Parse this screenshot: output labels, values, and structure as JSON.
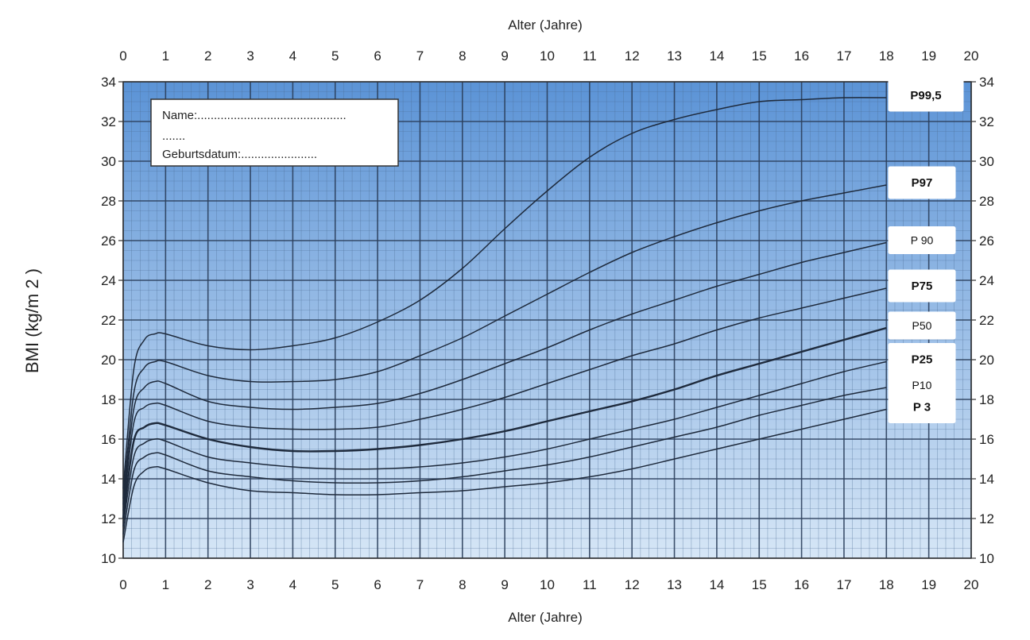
{
  "chart_data": {
    "type": "line",
    "xlabel": "Alter (Jahre)",
    "ylabel": "BMI (kg/m 2 )",
    "xlim": [
      0,
      20
    ],
    "ylim": [
      10,
      34
    ],
    "x_ticks": [
      0,
      1,
      2,
      3,
      4,
      5,
      6,
      7,
      8,
      9,
      10,
      11,
      12,
      13,
      14,
      15,
      16,
      17,
      18,
      19,
      20
    ],
    "y_ticks": [
      10,
      12,
      14,
      16,
      18,
      20,
      22,
      24,
      26,
      28,
      30,
      32,
      34
    ],
    "grid": true,
    "background": {
      "top": "#5b93d6",
      "bottom": "#d6e6f6"
    },
    "x": [
      0,
      0.25,
      0.5,
      0.75,
      1,
      2,
      3,
      4,
      5,
      6,
      7,
      8,
      9,
      10,
      11,
      12,
      13,
      14,
      15,
      16,
      17,
      18
    ],
    "series": [
      {
        "name": "P99,5",
        "bold": true,
        "values": [
          13.5,
          19.5,
          21.0,
          21.3,
          21.3,
          20.7,
          20.5,
          20.7,
          21.1,
          21.9,
          23.0,
          24.6,
          26.6,
          28.5,
          30.2,
          31.4,
          32.1,
          32.6,
          33.0,
          33.1,
          33.2,
          33.2
        ]
      },
      {
        "name": "P97",
        "bold": true,
        "values": [
          13.0,
          18.3,
          19.6,
          19.9,
          19.9,
          19.2,
          18.9,
          18.9,
          19.0,
          19.4,
          20.2,
          21.1,
          22.2,
          23.3,
          24.4,
          25.4,
          26.2,
          26.9,
          27.5,
          28.0,
          28.4,
          28.8
        ]
      },
      {
        "name": "P 90",
        "bold": false,
        "values": [
          12.7,
          17.5,
          18.6,
          18.9,
          18.8,
          17.9,
          17.6,
          17.5,
          17.6,
          17.8,
          18.3,
          19.0,
          19.8,
          20.6,
          21.5,
          22.3,
          23.0,
          23.7,
          24.3,
          24.9,
          25.4,
          25.9
        ]
      },
      {
        "name": "P75",
        "bold": true,
        "values": [
          12.4,
          16.8,
          17.6,
          17.8,
          17.7,
          16.9,
          16.6,
          16.5,
          16.5,
          16.6,
          17.0,
          17.5,
          18.1,
          18.8,
          19.5,
          20.2,
          20.8,
          21.5,
          22.1,
          22.6,
          23.1,
          23.6
        ]
      },
      {
        "name": "P50",
        "bold": false,
        "values": [
          12.0,
          15.9,
          16.6,
          16.8,
          16.7,
          16.0,
          15.6,
          15.4,
          15.4,
          15.5,
          15.7,
          16.0,
          16.4,
          16.9,
          17.4,
          17.9,
          18.5,
          19.2,
          19.8,
          20.4,
          21.0,
          21.6
        ]
      },
      {
        "name": "P25",
        "bold": true,
        "values": [
          11.6,
          15.1,
          15.8,
          16.0,
          15.9,
          15.1,
          14.8,
          14.6,
          14.5,
          14.5,
          14.6,
          14.8,
          15.1,
          15.5,
          16.0,
          16.5,
          17.0,
          17.6,
          18.2,
          18.8,
          19.4,
          19.9
        ]
      },
      {
        "name": "P10",
        "bold": false,
        "values": [
          11.2,
          14.4,
          15.1,
          15.3,
          15.2,
          14.4,
          14.1,
          13.9,
          13.8,
          13.8,
          13.9,
          14.1,
          14.4,
          14.7,
          15.1,
          15.6,
          16.1,
          16.6,
          17.2,
          17.7,
          18.2,
          18.6
        ]
      },
      {
        "name": "P 3",
        "bold": true,
        "values": [
          10.8,
          13.6,
          14.4,
          14.6,
          14.5,
          13.8,
          13.4,
          13.3,
          13.2,
          13.2,
          13.3,
          13.4,
          13.6,
          13.8,
          14.1,
          14.5,
          15.0,
          15.5,
          16.0,
          16.5,
          17.0,
          17.5
        ]
      }
    ]
  },
  "name_box": {
    "name_line": "Name:.............................................",
    "dots_line": ".......",
    "birth_line": "Geburtsdatum:......................."
  }
}
